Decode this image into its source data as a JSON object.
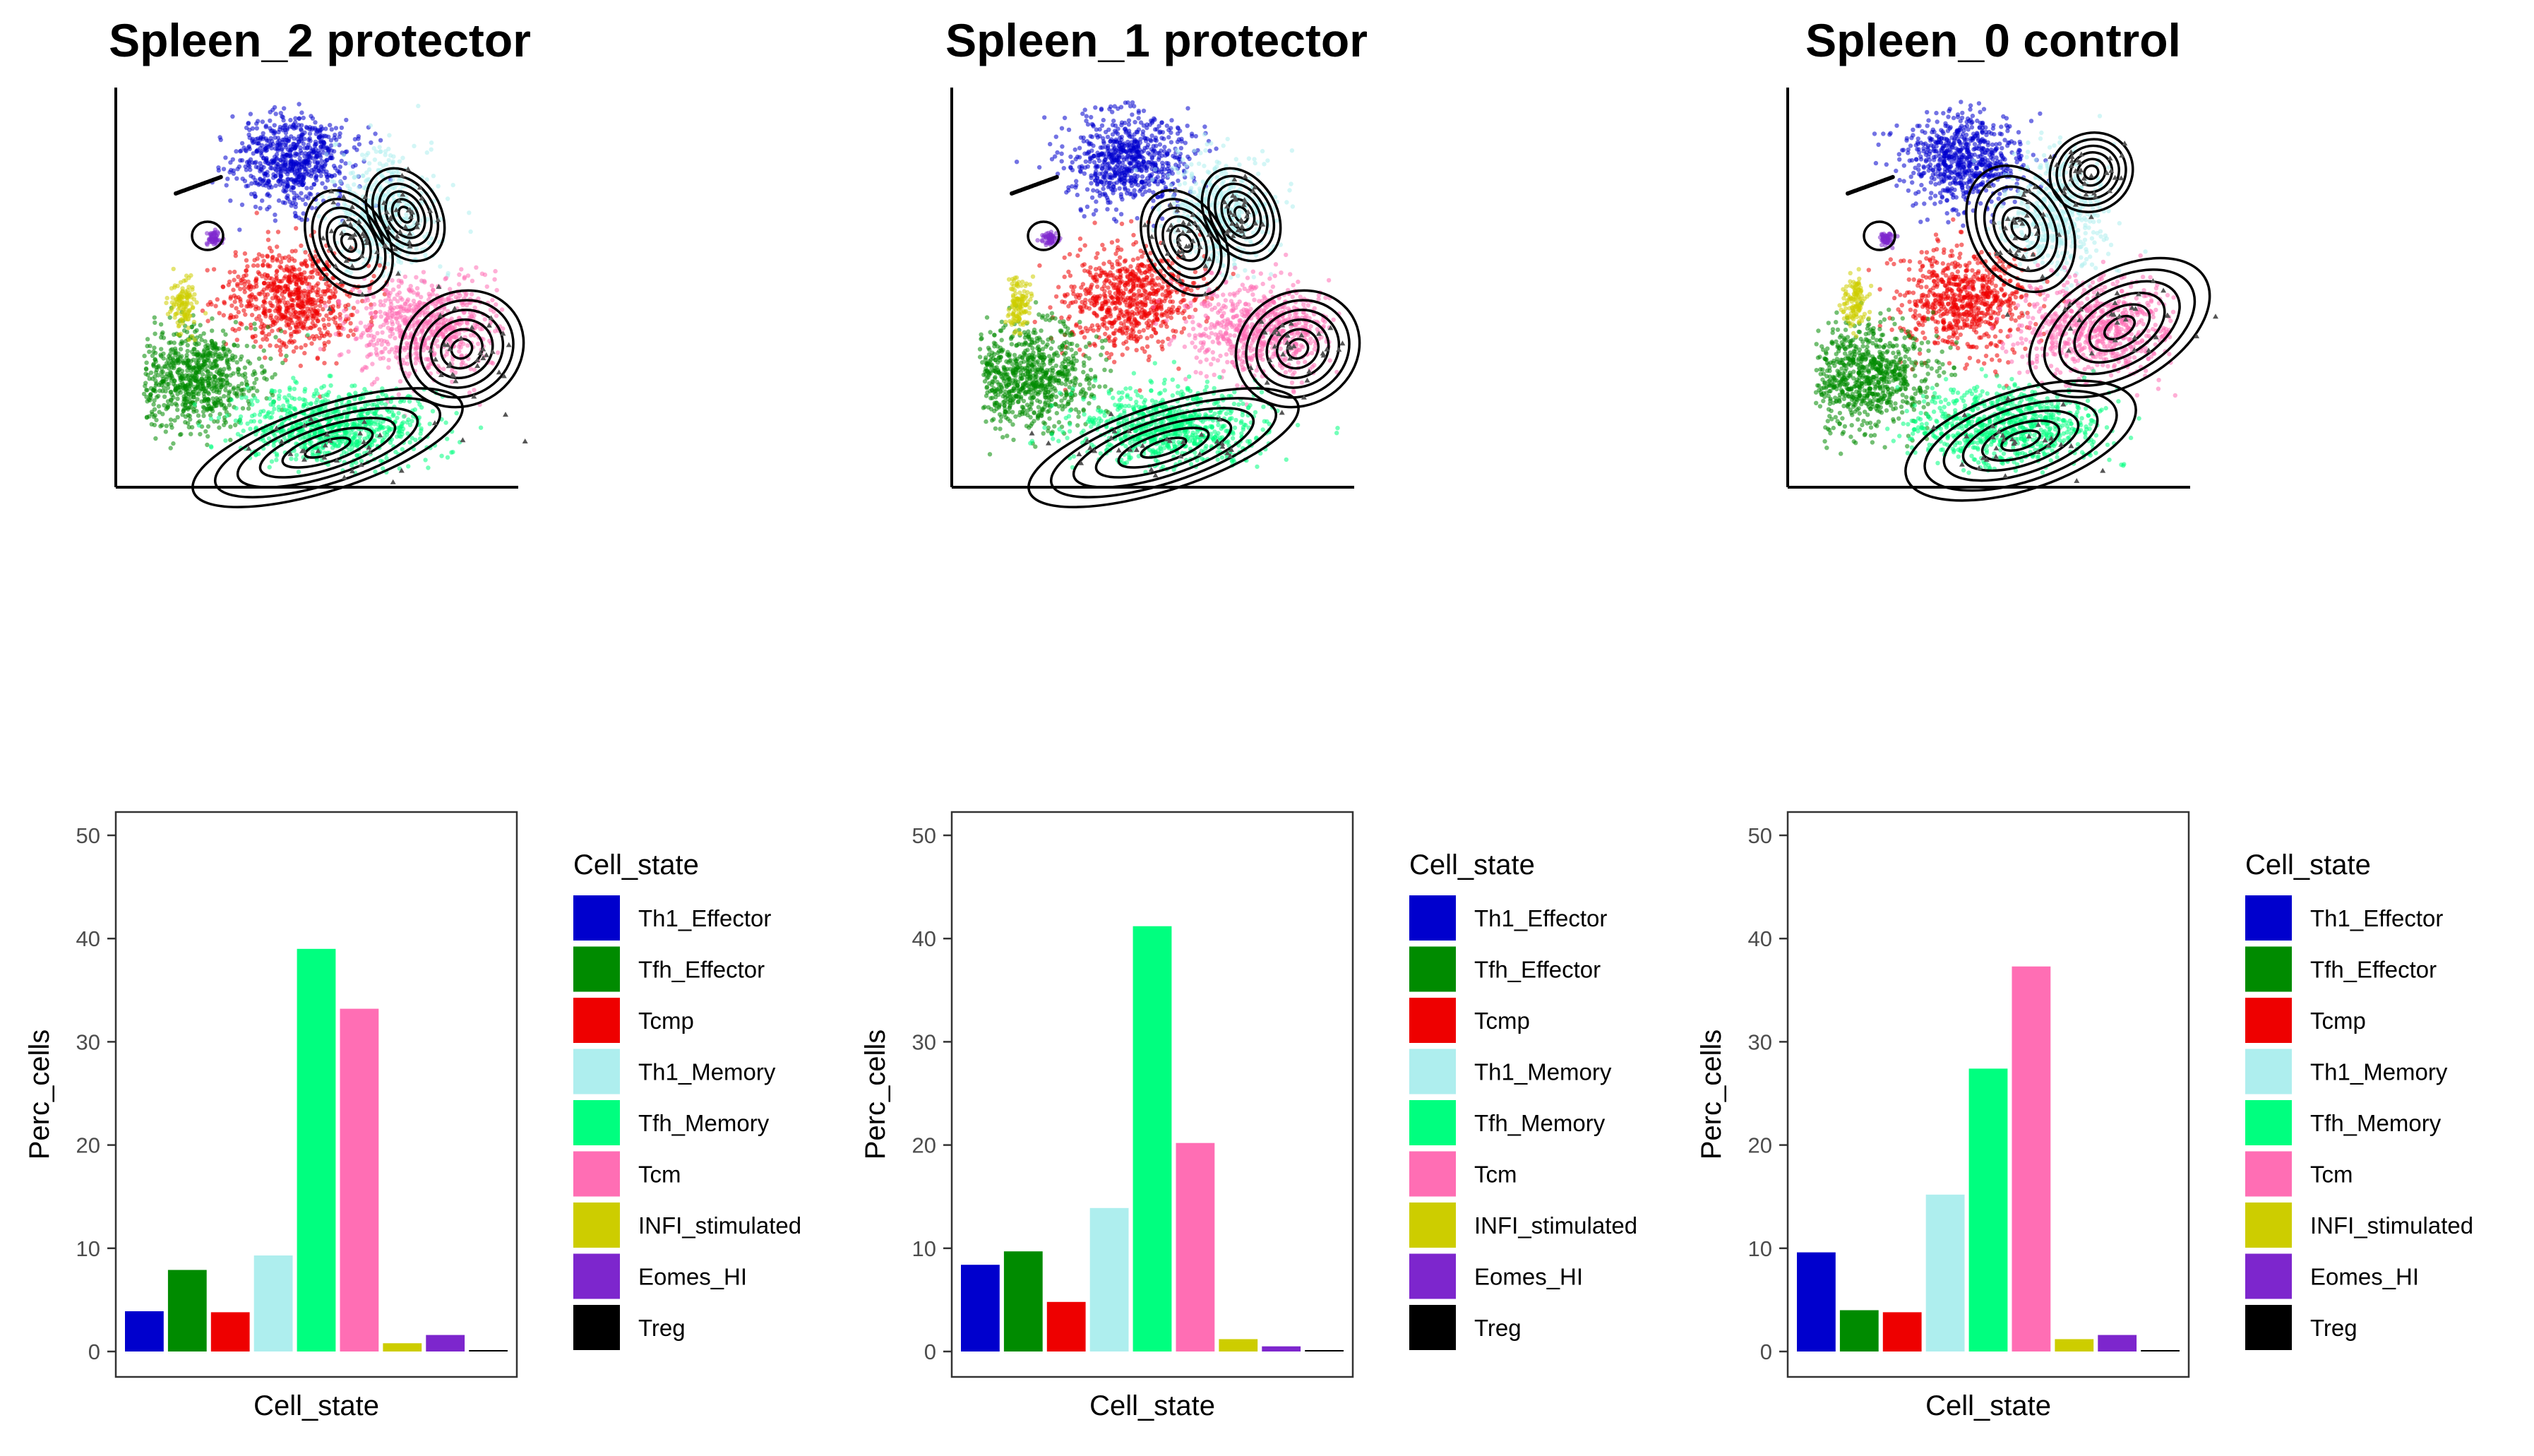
{
  "panels": [
    {
      "title": "Spleen_2 protector"
    },
    {
      "title": "Spleen_1 protector"
    },
    {
      "title": "Spleen_0 control"
    }
  ],
  "legend": {
    "title": "Cell_state",
    "items": [
      {
        "label": "Th1_Effector",
        "color": "#0000CD"
      },
      {
        "label": "Tfh_Effector",
        "color": "#008B00"
      },
      {
        "label": "Tcmp",
        "color": "#EE0000"
      },
      {
        "label": "Th1_Memory",
        "color": "#AEEEEE"
      },
      {
        "label": "Tfh_Memory",
        "color": "#00FF7F"
      },
      {
        "label": "Tcm",
        "color": "#FF6EB4"
      },
      {
        "label": "INFI_stimulated",
        "color": "#CDCD00"
      },
      {
        "label": "Eomes_HI",
        "color": "#7D26CD"
      },
      {
        "label": "Treg",
        "color": "#000000"
      }
    ]
  },
  "chart_data": [
    {
      "type": "scatter",
      "title": "Spleen_2 protector",
      "xlabel": "",
      "ylabel": "",
      "axis_ticks": "none",
      "overlay": "density contours (black) with black triangle cell markers",
      "series": [
        "Th1_Effector",
        "Tfh_Effector",
        "Tcmp",
        "Th1_Memory",
        "Tfh_Memory",
        "Tcm",
        "INFI_stimulated",
        "Eomes_HI",
        "Treg"
      ]
    },
    {
      "type": "scatter",
      "title": "Spleen_1 protector",
      "xlabel": "",
      "ylabel": "",
      "axis_ticks": "none",
      "overlay": "density contours (black) with black triangle cell markers",
      "series": [
        "Th1_Effector",
        "Tfh_Effector",
        "Tcmp",
        "Th1_Memory",
        "Tfh_Memory",
        "Tcm",
        "INFI_stimulated",
        "Eomes_HI",
        "Treg"
      ]
    },
    {
      "type": "scatter",
      "title": "Spleen_0 control",
      "xlabel": "",
      "ylabel": "",
      "axis_ticks": "none",
      "overlay": "density contours (black) with black triangle cell markers",
      "series": [
        "Th1_Effector",
        "Tfh_Effector",
        "Tcmp",
        "Th1_Memory",
        "Tfh_Memory",
        "Tcm",
        "INFI_stimulated",
        "Eomes_HI",
        "Treg"
      ]
    },
    {
      "type": "bar",
      "xlabel": "Cell_state",
      "ylabel": "Perc_cells",
      "ylim": [
        0,
        52
      ],
      "yticks": [
        0,
        10,
        20,
        30,
        40,
        50
      ],
      "categories": [
        "Th1_Effector",
        "Tfh_Effector",
        "Tcmp",
        "Th1_Memory",
        "Tfh_Memory",
        "Tcm",
        "INFI_stimulated",
        "Eomes_HI",
        "Treg"
      ],
      "values": [
        3.9,
        7.9,
        3.8,
        9.3,
        39.0,
        33.2,
        0.8,
        1.6,
        0.1
      ],
      "legend": "right",
      "grid": false
    },
    {
      "type": "bar",
      "xlabel": "Cell_state",
      "ylabel": "Perc_cells",
      "ylim": [
        0,
        52
      ],
      "yticks": [
        0,
        10,
        20,
        30,
        40,
        50
      ],
      "categories": [
        "Th1_Effector",
        "Tfh_Effector",
        "Tcmp",
        "Th1_Memory",
        "Tfh_Memory",
        "Tcm",
        "INFI_stimulated",
        "Eomes_HI",
        "Treg"
      ],
      "values": [
        8.4,
        9.7,
        4.8,
        13.9,
        41.2,
        20.2,
        1.2,
        0.5,
        0.1
      ],
      "legend": "right",
      "grid": false
    },
    {
      "type": "bar",
      "xlabel": "Cell_state",
      "ylabel": "Perc_cells",
      "ylim": [
        0,
        52
      ],
      "yticks": [
        0,
        10,
        20,
        30,
        40,
        50
      ],
      "categories": [
        "Th1_Effector",
        "Tfh_Effector",
        "Tcmp",
        "Th1_Memory",
        "Tfh_Memory",
        "Tcm",
        "INFI_stimulated",
        "Eomes_HI",
        "Treg"
      ],
      "values": [
        9.6,
        4.0,
        3.8,
        15.2,
        27.4,
        37.3,
        1.2,
        1.6,
        0.0
      ],
      "legend": "right",
      "grid": false
    }
  ]
}
